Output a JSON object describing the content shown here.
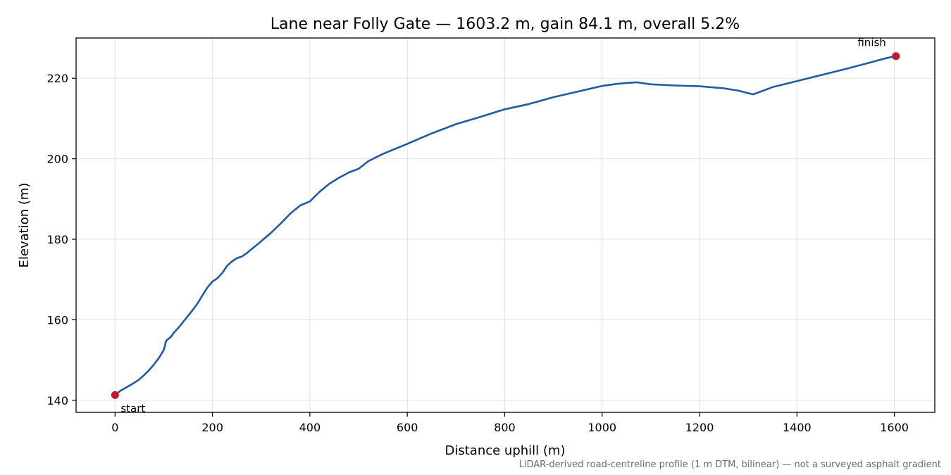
{
  "chart_data": {
    "type": "line",
    "title": "Lane near Folly Gate — 1603.2 m, gain 84.1 m, overall 5.2%",
    "xlabel": "Distance uphill (m)",
    "ylabel": "Elevation (m)",
    "xlim": [
      -80,
      1683
    ],
    "ylim": [
      137,
      230
    ],
    "xticks": [
      0,
      200,
      400,
      600,
      800,
      1000,
      1200,
      1400,
      1600
    ],
    "yticks": [
      140,
      160,
      180,
      200,
      220
    ],
    "grid": true,
    "line_color": "#1f5aa6",
    "marker_color": "#c0182f",
    "series": [
      {
        "x": [
          0,
          10,
          20,
          30,
          40,
          50,
          60,
          70,
          75,
          80,
          90,
          100,
          105,
          110,
          115,
          120,
          130,
          140,
          150,
          160,
          170,
          180,
          190,
          200,
          210,
          220,
          230,
          240,
          250,
          260,
          270,
          280,
          290,
          300,
          320,
          340,
          360,
          380,
          400,
          420,
          440,
          460,
          480,
          500,
          520,
          550,
          600,
          650,
          700,
          750,
          800,
          850,
          900,
          950,
          1000,
          1030,
          1070,
          1100,
          1150,
          1200,
          1250,
          1280,
          1310,
          1350,
          1400,
          1450,
          1500,
          1550,
          1580,
          1603.2
        ],
        "y": [
          141.3,
          142.3,
          143.0,
          143.7,
          144.4,
          145.2,
          146.3,
          147.5,
          148.2,
          148.9,
          150.5,
          152.5,
          154.8,
          155.3,
          155.8,
          156.7,
          158.0,
          159.5,
          161.0,
          162.5,
          164.2,
          166.2,
          168.1,
          169.5,
          170.3,
          171.6,
          173.4,
          174.5,
          175.3,
          175.7,
          176.5,
          177.5,
          178.5,
          179.5,
          181.6,
          183.9,
          186.4,
          188.4,
          189.4,
          191.8,
          193.8,
          195.3,
          196.6,
          197.5,
          199.4,
          201.2,
          203.7,
          206.3,
          208.6,
          210.4,
          212.3,
          213.6,
          215.3,
          216.7,
          218.1,
          218.6,
          219.0,
          218.5,
          218.2,
          218.0,
          217.5,
          216.9,
          216.0,
          217.8,
          219.3,
          220.8,
          222.3,
          223.9,
          224.9,
          225.5
        ]
      }
    ],
    "annotations": [
      {
        "text": "start",
        "x": 0,
        "y": 141.3
      },
      {
        "text": "finish",
        "x": 1603.2,
        "y": 225.5
      }
    ],
    "footnote": "LiDAR-derived road-centreline profile (1 m DTM, bilinear) — not a surveyed asphalt gradient"
  }
}
